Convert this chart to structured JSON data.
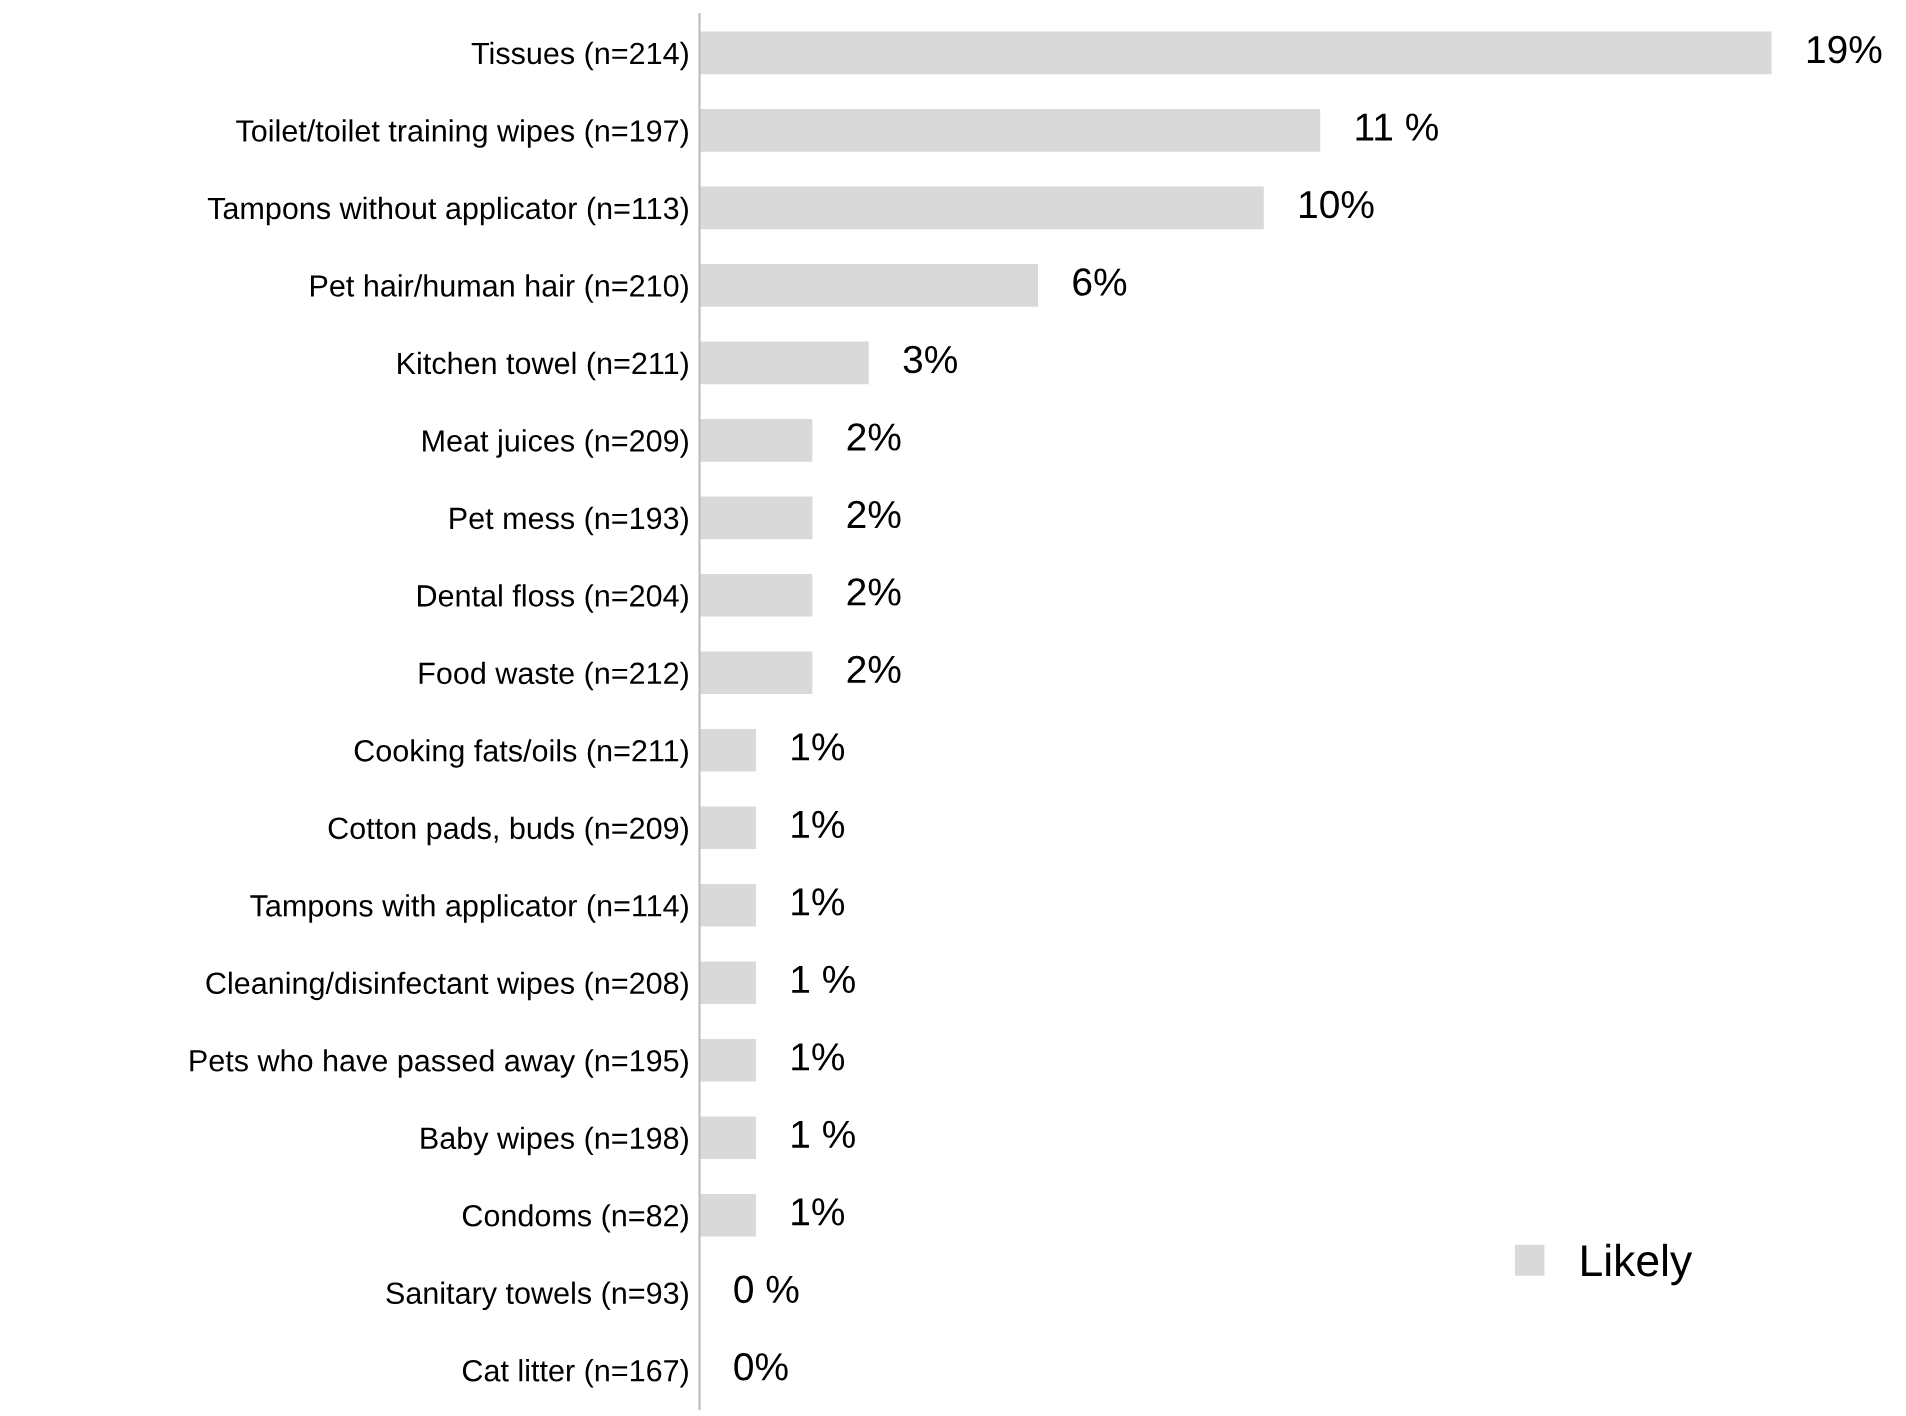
{
  "chart_data": {
    "type": "bar",
    "orientation": "horizontal",
    "categories": [
      "Tissues (n=214)",
      "Toilet/toilet training wipes (n=197)",
      "Tampons without applicator (n=113)",
      "Pet hair/human hair (n=210)",
      "Kitchen towel (n=211)",
      "Meat juices (n=209)",
      "Pet mess (n=193)",
      "Dental floss (n=204)",
      "Food waste (n=212)",
      "Cooking fats/oils (n=211)",
      "Cotton pads, buds (n=209)",
      "Tampons with applicator (n=114)",
      "Cleaning/disinfectant wipes (n=208)",
      "Pets who have passed away (n=195)",
      "Baby wipes (n=198)",
      "Condoms (n=82)",
      "Sanitary towels (n=93)",
      "Cat litter (n=167)"
    ],
    "series": [
      {
        "name": "Likely",
        "color": "#d9d9d9",
        "values": [
          19,
          11,
          10,
          6,
          3,
          2,
          2,
          2,
          2,
          1,
          1,
          1,
          1,
          1,
          1,
          1,
          0,
          0
        ],
        "value_labels": [
          "19%",
          "11 %",
          "10%",
          "6%",
          "3%",
          "2%",
          "2%",
          "2%",
          "2%",
          "1%",
          "1%",
          "1%",
          "1 %",
          "1%",
          "1 %",
          "1%",
          "0 %",
          "0%"
        ]
      }
    ],
    "legend": "bottom right",
    "grid": false,
    "tick_labels": "y"
  }
}
